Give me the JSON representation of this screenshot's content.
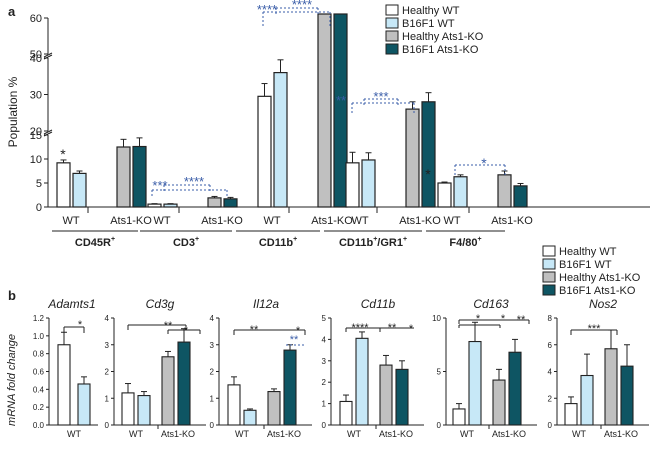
{
  "chart_data": [
    {
      "panel": "a",
      "type": "bar",
      "ylabel": "Population %",
      "y_ticks": [
        "0",
        "5",
        "10",
        "15",
        "20",
        "30",
        "40",
        "50",
        "60"
      ],
      "legend": [
        "Healthy WT",
        "B16F1 WT",
        "Healthy Ats1-KO",
        "B16F1 Ats1-KO"
      ],
      "groups": [
        {
          "label": "CD45R",
          "sup": "+",
          "sub": [
            "WT",
            "Ats1-KO"
          ],
          "values": [
            9.2,
            7.0,
            12.5,
            12.6
          ],
          "errors": [
            0.6,
            0.5,
            1.6,
            1.8
          ],
          "annotations": [
            {
              "text": "*"
            }
          ]
        },
        {
          "label": "CD3",
          "sup": "+",
          "sub": [
            "WT",
            "Ats1-KO"
          ],
          "values": [
            0.6,
            0.6,
            1.9,
            1.7
          ],
          "errors": [
            0.1,
            0.1,
            0.3,
            0.3
          ],
          "annotations": [
            {
              "text": "***"
            },
            {
              "text": "****"
            }
          ]
        },
        {
          "label": "CD11b",
          "sup": "+",
          "sub": [
            "WT",
            "Ats1-KO"
          ],
          "values": [
            29.5,
            36,
            68,
            67
          ],
          "errors": [
            3.5,
            3.5,
            1.5,
            1.0
          ],
          "annotations": [
            {
              "text": "****"
            },
            {
              "text": "****"
            }
          ]
        },
        {
          "label": "CD11b",
          "sup": "+",
          "label2": "/GR1",
          "sup2": "+",
          "sub": [
            "WT",
            "Ats1-KO"
          ],
          "values": [
            9.2,
            9.8,
            26,
            28
          ],
          "errors": [
            2.2,
            1.5,
            2.0,
            2.5
          ],
          "annotations": [
            {
              "text": "**"
            },
            {
              "text": "***"
            }
          ]
        },
        {
          "label": "F4/80",
          "sup": "+",
          "sub": [
            "WT",
            "Ats1-KO"
          ],
          "values": [
            5.0,
            6.3,
            6.7,
            4.4
          ],
          "errors": [
            0.2,
            0.4,
            0.8,
            0.5
          ],
          "annotations": [
            {
              "text": "*"
            },
            {
              "text": "*"
            }
          ]
        }
      ]
    },
    {
      "panel": "b",
      "type": "bar",
      "ylabel": "mRNA fold change",
      "legend": [
        "Healthy WT",
        "B16F1 WT",
        "Healthy Ats1-KO",
        "B16F1 Ats1-KO"
      ],
      "genes": [
        {
          "name": "Adamts1",
          "ylim": [
            0,
            1.2
          ],
          "yticks": [
            "0.0",
            "0.2",
            "0.4",
            "0.6",
            "0.8",
            "1.0",
            "1.2"
          ],
          "sub": [
            "WT"
          ],
          "values": [
            0.9,
            0.46
          ],
          "errors": [
            0.14,
            0.08
          ],
          "annotations": [
            {
              "text": "*"
            }
          ]
        },
        {
          "name": "Cd3g",
          "ylim": [
            0,
            4
          ],
          "yticks": [
            "0",
            "1",
            "2",
            "3",
            "4"
          ],
          "sub": [
            "WT",
            "Ats1-KO"
          ],
          "values": [
            1.2,
            1.1,
            2.55,
            3.1
          ],
          "errors": [
            0.35,
            0.15,
            0.2,
            0.5
          ],
          "annotations": [
            {
              "text": "**"
            },
            {
              "text": "*"
            }
          ]
        },
        {
          "name": "Il12a",
          "ylim": [
            0,
            4
          ],
          "yticks": [
            "0",
            "1",
            "2",
            "3",
            "4"
          ],
          "sub": [
            "WT",
            "Ats1-KO"
          ],
          "values": [
            1.5,
            0.55,
            1.25,
            2.8
          ],
          "errors": [
            0.3,
            0.05,
            0.1,
            0.2
          ],
          "annotations": [
            {
              "text": "**"
            },
            {
              "text": "*"
            },
            {
              "text": "**"
            }
          ]
        },
        {
          "name": "Cd11b",
          "ylim": [
            0,
            5
          ],
          "yticks": [
            "0",
            "1",
            "2",
            "3",
            "4",
            "5"
          ],
          "sub": [
            "WT",
            "Ats1-KO"
          ],
          "values": [
            1.1,
            4.05,
            2.8,
            2.6
          ],
          "errors": [
            0.3,
            0.3,
            0.45,
            0.4
          ],
          "annotations": [
            {
              "text": "****"
            },
            {
              "text": "**"
            },
            {
              "text": "*"
            }
          ]
        },
        {
          "name": "Cd163",
          "ylim": [
            0,
            10
          ],
          "yticks": [
            "0",
            "5",
            "10"
          ],
          "sub": [
            "WT",
            "Ats1-KO"
          ],
          "values": [
            1.5,
            7.8,
            4.2,
            6.8
          ],
          "errors": [
            0.5,
            1.8,
            1.0,
            1.2
          ],
          "annotations": [
            {
              "text": "*"
            },
            {
              "text": "*"
            },
            {
              "text": "**"
            }
          ]
        },
        {
          "name": "Nos2",
          "ylim": [
            0,
            8
          ],
          "yticks": [
            "0",
            "2",
            "4",
            "6",
            "8"
          ],
          "sub": [
            "WT",
            "Ats1-KO"
          ],
          "values": [
            1.6,
            3.7,
            5.7,
            4.4
          ],
          "errors": [
            0.5,
            1.6,
            1.4,
            1.6
          ],
          "annotations": [
            {
              "text": "***"
            }
          ]
        }
      ]
    }
  ],
  "colors": {
    "s0": "#ffffff",
    "s1": "#c7e8f7",
    "s2": "#c0c0c0",
    "s3": "#0e5563",
    "sig_blue": "#3a5da8"
  }
}
